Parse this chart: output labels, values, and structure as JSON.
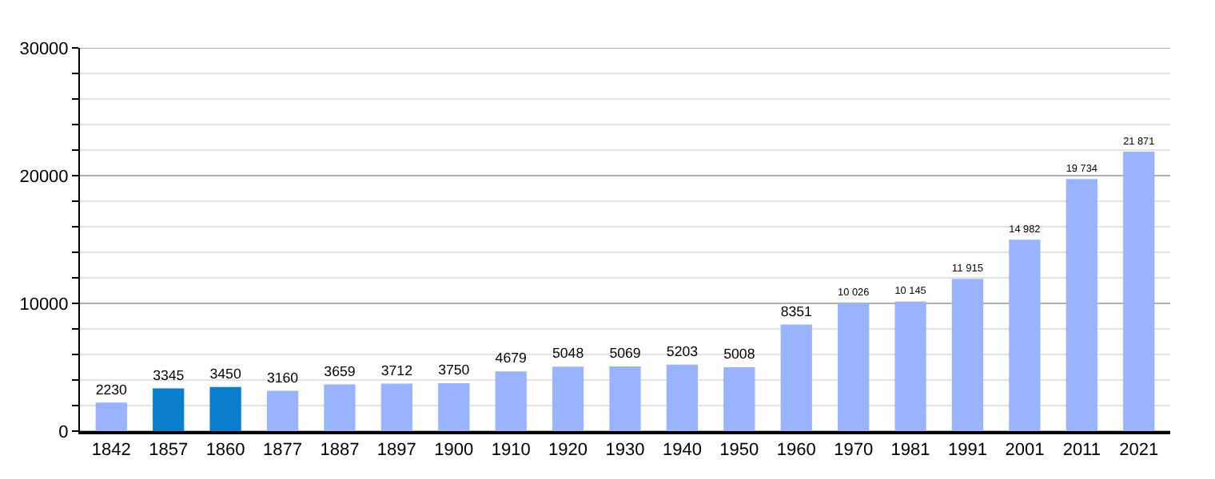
{
  "chart_data": {
    "type": "bar",
    "categories": [
      "1842",
      "1857",
      "1860",
      "1877",
      "1887",
      "1897",
      "1900",
      "1910",
      "1920",
      "1930",
      "1940",
      "1950",
      "1960",
      "1970",
      "1981",
      "1991",
      "2001",
      "2011",
      "2021"
    ],
    "values": [
      2230,
      3345,
      3450,
      3160,
      3659,
      3712,
      3750,
      4679,
      5048,
      5069,
      5203,
      5008,
      8351,
      10026,
      10145,
      11915,
      14982,
      19734,
      21871
    ],
    "value_labels": [
      "2230",
      "3345",
      "3450",
      "3160",
      "3659",
      "3712",
      "3750",
      "4679",
      "5048",
      "5069",
      "5203",
      "5008",
      "8351",
      "10 026",
      "10 145",
      "11 915",
      "14 982",
      "19 734",
      "21 871"
    ],
    "colors": [
      "#99b3ff",
      "#0a7dcc",
      "#0a7dcc",
      "#99b3ff",
      "#99b3ff",
      "#99b3ff",
      "#99b3ff",
      "#99b3ff",
      "#99b3ff",
      "#99b3ff",
      "#99b3ff",
      "#99b3ff",
      "#99b3ff",
      "#99b3ff",
      "#99b3ff",
      "#99b3ff",
      "#99b3ff",
      "#99b3ff",
      "#99b3ff"
    ],
    "ylim": [
      0,
      30000
    ],
    "yticks": [
      0,
      {
        "value": 2000,
        "label": null
      },
      {
        "value": 4000,
        "label": null
      },
      {
        "value": 6000,
        "label": null
      },
      {
        "value": 8000,
        "label": null
      },
      10000,
      {
        "value": 12000,
        "label": null
      },
      {
        "value": 14000,
        "label": null
      },
      {
        "value": 16000,
        "label": null
      },
      {
        "value": 18000,
        "label": null
      },
      20000,
      {
        "value": 22000,
        "label": null
      },
      {
        "value": 24000,
        "label": null
      },
      {
        "value": 26000,
        "label": null
      },
      {
        "value": 28000,
        "label": null
      },
      30000
    ],
    "grid": "y"
  }
}
